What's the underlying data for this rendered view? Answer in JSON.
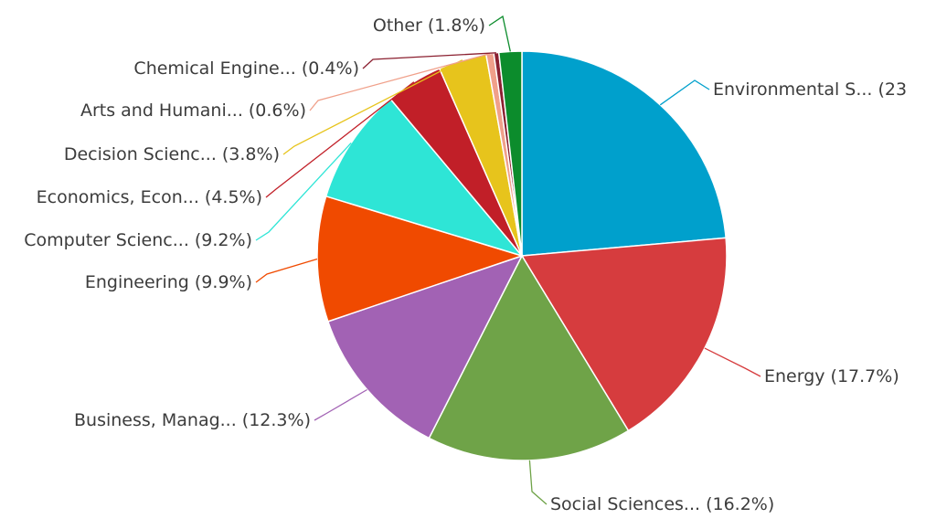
{
  "chart_data": {
    "type": "pie",
    "series": [
      {
        "label": "Environmental S... (23",
        "value": 23.6,
        "color": "#00a0cc"
      },
      {
        "label": "Energy (17.7%)",
        "value": 17.7,
        "color": "#d63c3e"
      },
      {
        "label": "Social Sciences... (16.2%)",
        "value": 16.2,
        "color": "#6fa348"
      },
      {
        "label": "Business, Manag... (12.3%)",
        "value": 12.3,
        "color": "#a262b4"
      },
      {
        "label": "Engineering (9.9%)",
        "value": 9.9,
        "color": "#f04a00"
      },
      {
        "label": "Computer Scienc... (9.2%)",
        "value": 9.2,
        "color": "#2ee5d6"
      },
      {
        "label": "Economics, Econ... (4.5%)",
        "value": 4.5,
        "color": "#c11f28"
      },
      {
        "label": "Decision Scienc... (3.8%)",
        "value": 3.8,
        "color": "#e7c41c"
      },
      {
        "label": "Arts and Humani... (0.6%)",
        "value": 0.6,
        "color": "#f0a08a"
      },
      {
        "label": "Chemical Engine... (0.4%)",
        "value": 0.4,
        "color": "#8b2030"
      },
      {
        "label": "Other (1.8%)",
        "value": 1.8,
        "color": "#0c8c2c"
      }
    ]
  }
}
